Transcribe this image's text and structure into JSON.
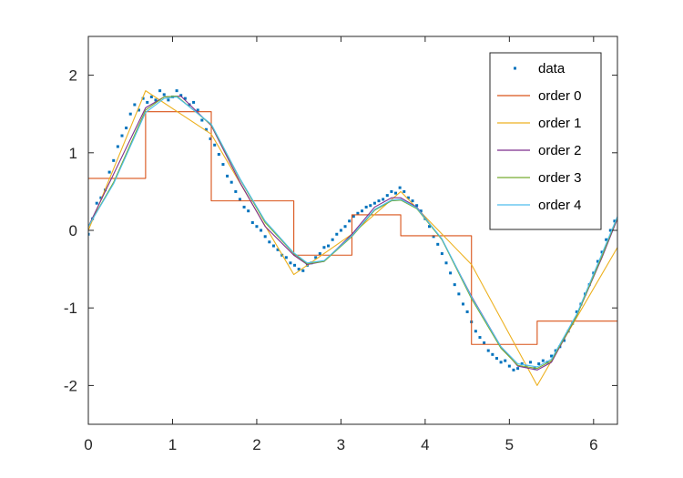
{
  "chart_data": {
    "type": "line",
    "title": "",
    "xlabel": "",
    "ylabel": "",
    "xlim": [
      0,
      6.2832
    ],
    "ylim": [
      -2.5,
      2.5
    ],
    "xticks": [
      0,
      1,
      2,
      3,
      4,
      5,
      6
    ],
    "yticks": [
      -2,
      -1,
      0,
      1,
      2
    ],
    "tick_labels_x": [
      "0",
      "1",
      "2",
      "3",
      "4",
      "5",
      "6"
    ],
    "tick_labels_y": [
      "-2",
      "-1",
      "0",
      "1",
      "2"
    ],
    "legend_position": "top-right",
    "grid": false,
    "series": [
      {
        "name": "data",
        "style": "points",
        "color": "#0072bd",
        "x": [
          0.0,
          0.05,
          0.1,
          0.15,
          0.2,
          0.25,
          0.3,
          0.35,
          0.4,
          0.45,
          0.5,
          0.55,
          0.6,
          0.65,
          0.7,
          0.75,
          0.8,
          0.85,
          0.9,
          0.95,
          1.0,
          1.05,
          1.1,
          1.15,
          1.2,
          1.25,
          1.3,
          1.35,
          1.4,
          1.45,
          1.5,
          1.55,
          1.6,
          1.65,
          1.7,
          1.75,
          1.8,
          1.85,
          1.9,
          1.95,
          2.0,
          2.05,
          2.1,
          2.15,
          2.2,
          2.25,
          2.3,
          2.35,
          2.4,
          2.45,
          2.5,
          2.55,
          2.6,
          2.65,
          2.7,
          2.75,
          2.8,
          2.85,
          2.9,
          2.95,
          3.0,
          3.05,
          3.1,
          3.15,
          3.2,
          3.25,
          3.3,
          3.35,
          3.4,
          3.45,
          3.5,
          3.55,
          3.6,
          3.65,
          3.7,
          3.75,
          3.8,
          3.85,
          3.9,
          3.95,
          4.0,
          4.05,
          4.1,
          4.15,
          4.2,
          4.25,
          4.3,
          4.35,
          4.4,
          4.45,
          4.5,
          4.55,
          4.6,
          4.65,
          4.7,
          4.75,
          4.8,
          4.85,
          4.9,
          4.95,
          5.0,
          5.05,
          5.1,
          5.15,
          5.2,
          5.25,
          5.3,
          5.35,
          5.4,
          5.45,
          5.5,
          5.55,
          5.6,
          5.65,
          5.7,
          5.75,
          5.8,
          5.85,
          5.9,
          5.95,
          6.0,
          6.05,
          6.1,
          6.15,
          6.2,
          6.25
        ],
        "y": [
          -0.05,
          0.15,
          0.35,
          0.42,
          0.52,
          0.75,
          0.9,
          1.08,
          1.22,
          1.32,
          1.5,
          1.62,
          1.55,
          1.7,
          1.65,
          1.72,
          1.68,
          1.8,
          1.75,
          1.68,
          1.72,
          1.8,
          1.74,
          1.7,
          1.62,
          1.65,
          1.55,
          1.42,
          1.3,
          1.18,
          1.1,
          0.98,
          0.85,
          0.7,
          0.62,
          0.5,
          0.4,
          0.3,
          0.25,
          0.1,
          0.05,
          0.0,
          -0.08,
          -0.15,
          -0.2,
          -0.25,
          -0.32,
          -0.35,
          -0.42,
          -0.45,
          -0.5,
          -0.52,
          -0.45,
          -0.42,
          -0.35,
          -0.3,
          -0.22,
          -0.2,
          -0.12,
          -0.05,
          0.0,
          0.05,
          0.12,
          0.18,
          0.22,
          0.25,
          0.3,
          0.32,
          0.35,
          0.38,
          0.4,
          0.45,
          0.5,
          0.48,
          0.55,
          0.5,
          0.42,
          0.38,
          0.32,
          0.25,
          0.15,
          0.05,
          -0.08,
          -0.18,
          -0.3,
          -0.42,
          -0.55,
          -0.7,
          -0.82,
          -0.95,
          -1.05,
          -1.18,
          -1.3,
          -1.38,
          -1.45,
          -1.55,
          -1.6,
          -1.65,
          -1.7,
          -1.68,
          -1.75,
          -1.8,
          -1.78,
          -1.72,
          -1.75,
          -1.7,
          -1.78,
          -1.72,
          -1.68,
          -1.7,
          -1.62,
          -1.55,
          -1.5,
          -1.42,
          -1.3,
          -1.2,
          -1.05,
          -0.95,
          -0.82,
          -0.7,
          -0.55,
          -0.4,
          -0.28,
          -0.12,
          0.0,
          0.12
        ]
      },
      {
        "name": "order 0",
        "style": "line",
        "color": "#d95319",
        "x": [
          0.0,
          0.68,
          0.68,
          1.46,
          1.46,
          2.44,
          2.44,
          3.13,
          3.13,
          3.71,
          3.71,
          4.55,
          4.55,
          5.33,
          5.33,
          6.2832
        ],
        "y": [
          0.67,
          0.67,
          1.53,
          1.53,
          0.38,
          0.38,
          -0.32,
          -0.32,
          0.2,
          0.2,
          -0.07,
          -0.07,
          -1.47,
          -1.47,
          -1.17,
          -1.17
        ]
      },
      {
        "name": "order 1",
        "style": "line",
        "color": "#edb120",
        "x": [
          0.0,
          0.68,
          1.46,
          2.44,
          3.13,
          3.71,
          4.55,
          5.33,
          6.2832
        ],
        "y": [
          0.0,
          1.8,
          1.24,
          -0.57,
          -0.05,
          0.5,
          -0.44,
          -2.0,
          -0.22
        ]
      },
      {
        "name": "order 2",
        "style": "line",
        "color": "#7e2f8e",
        "x": [
          0.0,
          0.68,
          0.9,
          1.1,
          1.46,
          1.8,
          2.1,
          2.44,
          2.6,
          2.8,
          3.13,
          3.4,
          3.6,
          3.71,
          3.9,
          4.2,
          4.55,
          4.9,
          5.1,
          5.33,
          5.5,
          5.8,
          6.1,
          6.2832
        ],
        "y": [
          0.05,
          1.58,
          1.72,
          1.73,
          1.35,
          0.62,
          0.05,
          -0.32,
          -0.44,
          -0.4,
          -0.05,
          0.3,
          0.42,
          0.42,
          0.3,
          -0.12,
          -0.85,
          -1.5,
          -1.75,
          -1.8,
          -1.7,
          -1.1,
          -0.35,
          0.15
        ]
      },
      {
        "name": "order 3",
        "style": "line",
        "color": "#77ac30",
        "x": [
          0.0,
          0.3,
          0.68,
          0.9,
          1.05,
          1.46,
          1.8,
          2.1,
          2.44,
          2.6,
          2.8,
          3.13,
          3.4,
          3.6,
          3.71,
          3.9,
          4.2,
          4.55,
          4.9,
          5.1,
          5.33,
          5.5,
          5.8,
          6.1,
          6.2832
        ],
        "y": [
          0.05,
          0.62,
          1.55,
          1.72,
          1.73,
          1.36,
          0.66,
          0.1,
          -0.3,
          -0.43,
          -0.4,
          -0.08,
          0.26,
          0.38,
          0.39,
          0.28,
          -0.12,
          -0.88,
          -1.52,
          -1.74,
          -1.78,
          -1.68,
          -1.1,
          -0.33,
          0.17
        ]
      },
      {
        "name": "order 4",
        "style": "line",
        "color": "#4dbeee",
        "x": [
          0.0,
          0.3,
          0.68,
          0.9,
          1.05,
          1.46,
          1.8,
          2.1,
          2.44,
          2.6,
          2.8,
          3.13,
          3.4,
          3.6,
          3.71,
          3.9,
          4.2,
          4.55,
          4.9,
          5.1,
          5.33,
          5.5,
          5.8,
          6.1,
          6.2832
        ],
        "y": [
          0.05,
          0.6,
          1.52,
          1.7,
          1.72,
          1.37,
          0.67,
          0.12,
          -0.29,
          -0.42,
          -0.39,
          -0.07,
          0.27,
          0.39,
          0.4,
          0.29,
          -0.11,
          -0.86,
          -1.5,
          -1.72,
          -1.76,
          -1.66,
          -1.08,
          -0.3,
          0.18
        ]
      }
    ]
  }
}
